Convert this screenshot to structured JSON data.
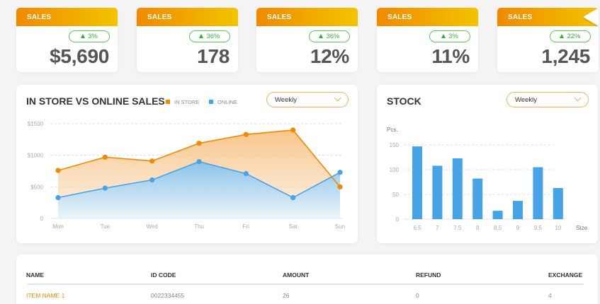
{
  "kpis": [
    {
      "label": "SALES",
      "change": "3%",
      "value": "$5,690"
    },
    {
      "label": "SALES",
      "change": "36%",
      "value": "178"
    },
    {
      "label": "SALES",
      "change": "36%",
      "value": "12%"
    },
    {
      "label": "SALES",
      "change": "3%",
      "value": "11%"
    },
    {
      "label": "SALES",
      "change": "22%",
      "value": "1,245"
    }
  ],
  "sales_chart": {
    "title": "IN STORE VS ONLINE SALES",
    "legend": [
      {
        "label": "IN STORE",
        "color": "#f08a00"
      },
      {
        "label": "ONLINE",
        "color": "#46a3e8"
      }
    ],
    "period": "Weekly"
  },
  "stock_chart": {
    "title": "STOCK",
    "period": "Weekly",
    "ylabel": "Pcs.",
    "xlabel": "Size"
  },
  "chart_data": [
    {
      "type": "area",
      "title": "IN STORE VS ONLINE SALES",
      "categories": [
        "Mon",
        "Tue",
        "Wed",
        "Thu",
        "Fri",
        "Sat",
        "Sun"
      ],
      "series": [
        {
          "name": "IN STORE",
          "color": "#f08a00",
          "values": [
            760,
            970,
            910,
            1190,
            1330,
            1400,
            500
          ]
        },
        {
          "name": "ONLINE",
          "color": "#46a3e8",
          "values": [
            330,
            480,
            610,
            900,
            710,
            330,
            730
          ]
        }
      ],
      "yticks": [
        "0",
        "$500",
        "$1000",
        "$1500"
      ],
      "ylim": [
        0,
        1500
      ],
      "grid": true,
      "legend_position": "top"
    },
    {
      "type": "bar",
      "title": "STOCK",
      "categories": [
        "6.5",
        "7",
        "7.5",
        "8",
        "8.5",
        "9",
        "9.5",
        "10"
      ],
      "values": [
        147,
        108,
        123,
        82,
        17,
        37,
        105,
        63
      ],
      "xlabel": "Size",
      "ylabel": "Pcs.",
      "yticks": [
        "0",
        "50",
        "100",
        "150"
      ],
      "ylim": [
        0,
        150
      ],
      "grid": true,
      "color": "#46a3e8"
    }
  ],
  "table": {
    "headers": [
      "NAME",
      "ID CODE",
      "AMOUNT",
      "REFUND",
      "EXCHANGE"
    ],
    "rows": [
      [
        "ITEM NAME 1",
        "0022334455",
        "26",
        "0",
        "4"
      ]
    ]
  },
  "colors": {
    "accent_orange": "#f08a00",
    "accent_yellow": "#f2c400",
    "online_blue": "#46a3e8",
    "positive_green": "#3eb13e"
  }
}
